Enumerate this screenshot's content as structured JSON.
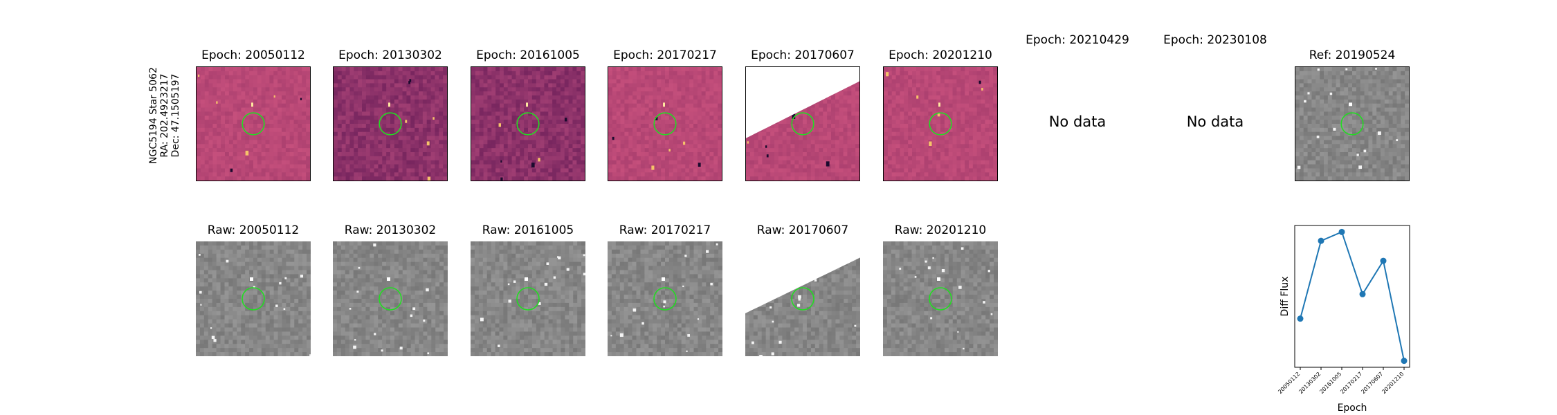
{
  "object_label": [
    "NGC5194 Star 5062",
    "RA: 202.4923217",
    "Dec: 47.1505197"
  ],
  "diff_panels": [
    {
      "title": "Epoch: 20050112",
      "style": "diff",
      "has_data": true
    },
    {
      "title": "Epoch: 20130302",
      "style": "diff-dark",
      "has_data": true
    },
    {
      "title": "Epoch: 20161005",
      "style": "diff-dark",
      "has_data": true
    },
    {
      "title": "Epoch: 20170217",
      "style": "diff",
      "has_data": true
    },
    {
      "title": "Epoch: 20170607",
      "style": "diff-partial",
      "has_data": true
    },
    {
      "title": "Epoch: 20201210",
      "style": "diff",
      "has_data": true
    },
    {
      "title": "Epoch: 20210429",
      "has_data": false,
      "nodata_text": "No data"
    },
    {
      "title": "Epoch: 20230108",
      "has_data": false,
      "nodata_text": "No data"
    }
  ],
  "ref_panel": {
    "title": "Ref: 20190524"
  },
  "raw_panels": [
    {
      "title": "Raw: 20050112",
      "partial": false
    },
    {
      "title": "Raw: 20130302",
      "partial": false
    },
    {
      "title": "Raw: 20161005",
      "partial": false
    },
    {
      "title": "Raw: 20170217",
      "partial": false
    },
    {
      "title": "Raw: 20170607",
      "partial": true
    },
    {
      "title": "Raw: 20201210",
      "partial": false
    }
  ],
  "colors": {
    "diff_base": "#c0457a",
    "diff_dark": "#8e2f6e",
    "raw_base": "#8a8a8a",
    "circle": "#22dd22",
    "line": "#1f77b4"
  },
  "chart_data": {
    "type": "line",
    "x": [
      "20050112",
      "20130302",
      "20161005",
      "20170217",
      "20170607",
      "20201210"
    ],
    "values": [
      0.18,
      0.88,
      0.96,
      0.4,
      0.7,
      -0.2
    ],
    "xlabel": "Epoch",
    "ylabel": "Diff Flux",
    "yticks_shown": false,
    "markers": true
  }
}
